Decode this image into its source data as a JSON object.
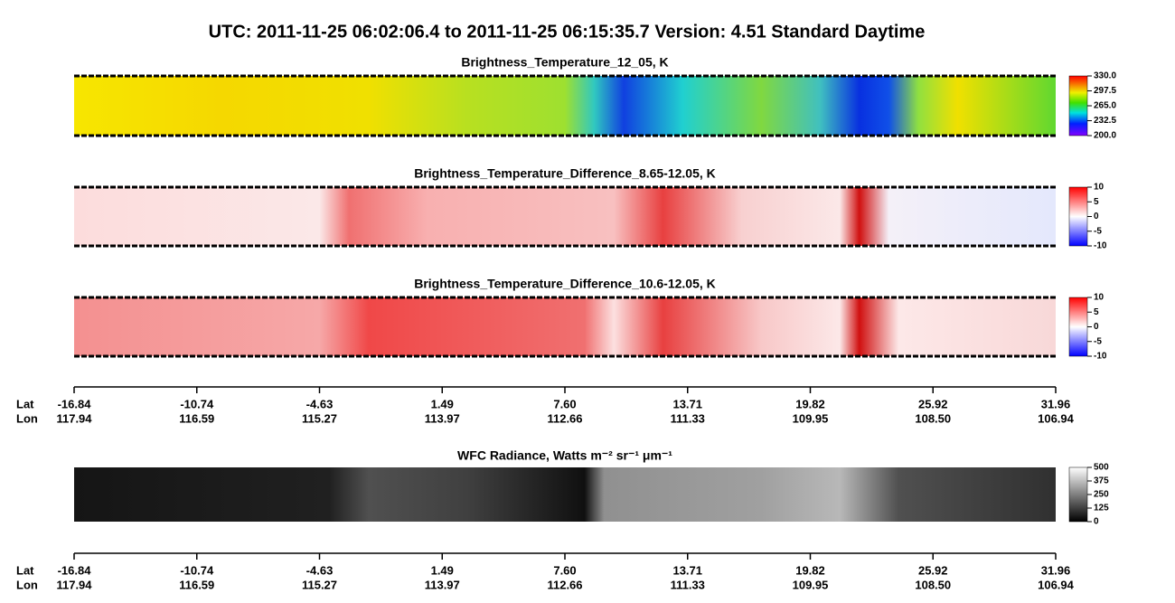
{
  "title": "UTC:  2011-11-25   06:02:06.4  to  2011-11-25   06:15:35.7    Version: 4.51  Standard Daytime",
  "chart_data": [
    {
      "type": "heatmap",
      "title": "Brightness_Temperature_12_05, K",
      "colormap": "rainbow",
      "clim": [
        200,
        330
      ],
      "cticks": [
        {
          "value": 200,
          "label": "200.0"
        },
        {
          "value": 232.5,
          "label": "232.5"
        },
        {
          "value": 265,
          "label": "265.0"
        },
        {
          "value": 297.5,
          "label": "297.5"
        },
        {
          "value": 330,
          "label": "330.0"
        }
      ]
    },
    {
      "type": "heatmap",
      "title": "Brightness_Temperature_Difference_8.65-12.05, K",
      "colormap": "bwr",
      "clim": [
        -10,
        10
      ],
      "cticks": [
        -10,
        -5,
        0,
        5,
        10
      ]
    },
    {
      "type": "heatmap",
      "title": "Brightness_Temperature_Difference_10.6-12.05, K",
      "colormap": "bwr2",
      "clim": [
        -10,
        10
      ],
      "cticks": [
        -10,
        -5,
        0,
        5,
        10
      ]
    },
    {
      "type": "heatmap",
      "title": "WFC Radiance, Watts m⁻² sr⁻¹ μm⁻¹",
      "colormap": "gray",
      "clim": [
        0,
        500
      ],
      "cticks": [
        0,
        125,
        250,
        375,
        500
      ]
    }
  ],
  "x_axis": {
    "lat_label": "Lat",
    "lon_label": "Lon",
    "lat": [
      "-16.84",
      "-10.74",
      "-4.63",
      "1.49",
      "7.60",
      "13.71",
      "19.82",
      "25.92",
      "31.96"
    ],
    "lon": [
      "117.94",
      "116.59",
      "115.27",
      "113.97",
      "112.66",
      "111.33",
      "109.95",
      "108.50",
      "106.94"
    ]
  }
}
